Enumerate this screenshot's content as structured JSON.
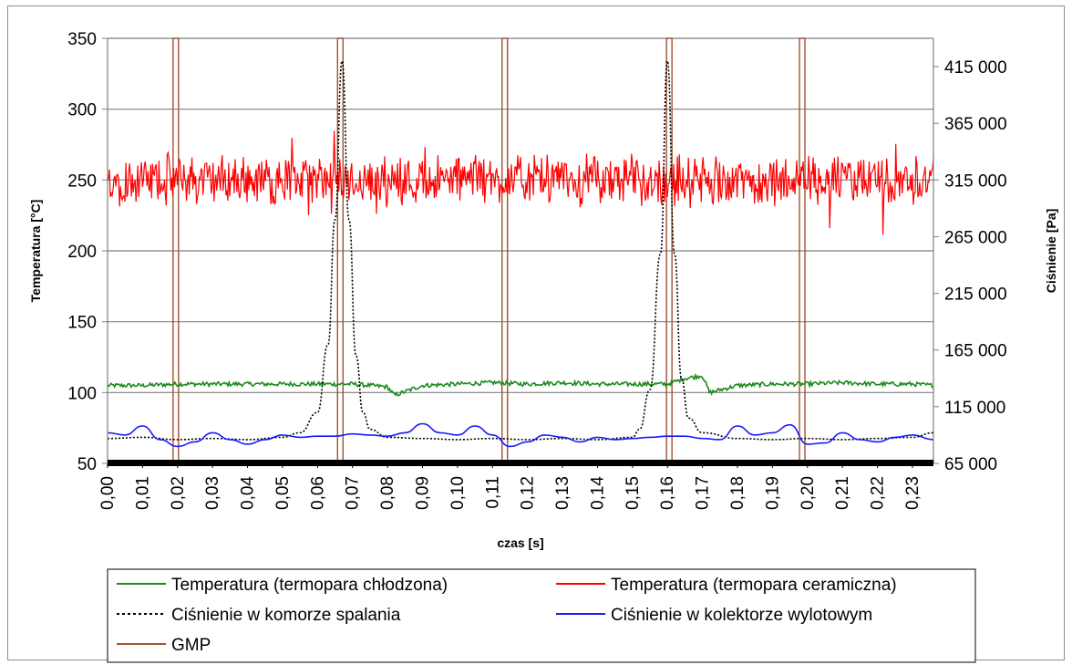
{
  "chart_data": {
    "type": "line",
    "xlabel": "czas [s]",
    "ylabel_left": "Temperatura [°C]",
    "ylabel_right": "Ciśnienie [Pa]",
    "xlim": [
      0,
      0.236
    ],
    "ylim_left": [
      50,
      350
    ],
    "ylim_right": [
      65000,
      440000
    ],
    "x_ticks": [
      "0,00",
      "0,01",
      "0,02",
      "0,03",
      "0,04",
      "0,05",
      "0,06",
      "0,07",
      "0,08",
      "0,09",
      "0,10",
      "0,11",
      "0,12",
      "0,13",
      "0,14",
      "0,15",
      "0,16",
      "0,17",
      "0,18",
      "0,19",
      "0,20",
      "0,21",
      "0,22",
      "0,23"
    ],
    "y_left_ticks": [
      "50",
      "100",
      "150",
      "200",
      "250",
      "300",
      "350"
    ],
    "y_left_tick_values": [
      50,
      100,
      150,
      200,
      250,
      300,
      350
    ],
    "y_right_ticks": [
      "65 000",
      "115 000",
      "165 000",
      "215 000",
      "265 000",
      "315 000",
      "365 000",
      "415 000"
    ],
    "y_right_tick_values": [
      65000,
      115000,
      165000,
      215000,
      265000,
      315000,
      365000,
      415000
    ],
    "grid": "horizontal",
    "legend_position": "bottom",
    "series": [
      {
        "name": "Temperatura (termopara chłodzona)",
        "axis": "left",
        "color": "#1e8a1e",
        "style": "solid",
        "x": [
          0,
          0.01,
          0.02,
          0.03,
          0.04,
          0.05,
          0.06,
          0.07,
          0.08,
          0.082,
          0.09,
          0.1,
          0.11,
          0.12,
          0.13,
          0.14,
          0.15,
          0.16,
          0.165,
          0.17,
          0.172,
          0.18,
          0.19,
          0.2,
          0.21,
          0.22,
          0.23,
          0.236
        ],
        "y": [
          105,
          105,
          106,
          106,
          106,
          106,
          106,
          106,
          104,
          98,
          105,
          106,
          107,
          106,
          107,
          106,
          106,
          106,
          110,
          112,
          100,
          105,
          106,
          106,
          107,
          106,
          106,
          105
        ]
      },
      {
        "name": "Temperatura (termopara ceramiczna)",
        "axis": "left",
        "color": "#ff0000",
        "style": "solid",
        "mean": 250,
        "noise": 30,
        "x": [
          0,
          0.236
        ],
        "y": [
          250,
          250
        ]
      },
      {
        "name": "Ciśnienie w komorze spalania",
        "axis": "right",
        "color": "#000000",
        "style": "dotted",
        "x": [
          0,
          0.01,
          0.02,
          0.03,
          0.04,
          0.05,
          0.055,
          0.06,
          0.063,
          0.065,
          0.067,
          0.069,
          0.071,
          0.073,
          0.075,
          0.08,
          0.09,
          0.1,
          0.11,
          0.12,
          0.13,
          0.14,
          0.15,
          0.152,
          0.155,
          0.158,
          0.16,
          0.162,
          0.164,
          0.166,
          0.17,
          0.18,
          0.19,
          0.2,
          0.21,
          0.22,
          0.23,
          0.236
        ],
        "y": [
          87000,
          88000,
          86000,
          87000,
          86000,
          88000,
          92000,
          110000,
          170000,
          280000,
          420000,
          280000,
          160000,
          110000,
          95000,
          88000,
          87000,
          86000,
          87000,
          86000,
          87000,
          86000,
          88000,
          95000,
          130000,
          250000,
          420000,
          250000,
          140000,
          105000,
          92000,
          87000,
          86000,
          87000,
          86000,
          87000,
          88000,
          92000
        ]
      },
      {
        "name": "Ciśnienie w kolektorze wylotowym",
        "axis": "right",
        "color": "#1a1aff",
        "style": "solid",
        "x": [
          0,
          0.005,
          0.01,
          0.015,
          0.02,
          0.025,
          0.03,
          0.035,
          0.04,
          0.045,
          0.05,
          0.055,
          0.06,
          0.065,
          0.07,
          0.075,
          0.08,
          0.085,
          0.09,
          0.095,
          0.1,
          0.105,
          0.11,
          0.115,
          0.12,
          0.125,
          0.13,
          0.135,
          0.14,
          0.145,
          0.15,
          0.155,
          0.16,
          0.165,
          0.17,
          0.175,
          0.18,
          0.185,
          0.19,
          0.195,
          0.2,
          0.205,
          0.21,
          0.215,
          0.22,
          0.225,
          0.23,
          0.236
        ],
        "y": [
          92000,
          90000,
          98000,
          86000,
          80000,
          84000,
          92000,
          86000,
          82000,
          86000,
          90000,
          88000,
          89000,
          89000,
          91000,
          90000,
          89000,
          92000,
          100000,
          92000,
          90000,
          98000,
          90000,
          80000,
          84000,
          90000,
          88000,
          84000,
          88000,
          86000,
          87000,
          88000,
          89000,
          89000,
          87000,
          86000,
          98000,
          90000,
          92000,
          99000,
          82000,
          83000,
          92000,
          86000,
          84000,
          88000,
          90000,
          86000
        ]
      },
      {
        "name": "GMP",
        "axis": "left",
        "color": "#a0522d",
        "style": "solid",
        "type": "vertical-markers",
        "x": [
          0.0195,
          0.0665,
          0.1135,
          0.1605,
          0.1985
        ]
      }
    ],
    "marker_strip": "black"
  }
}
